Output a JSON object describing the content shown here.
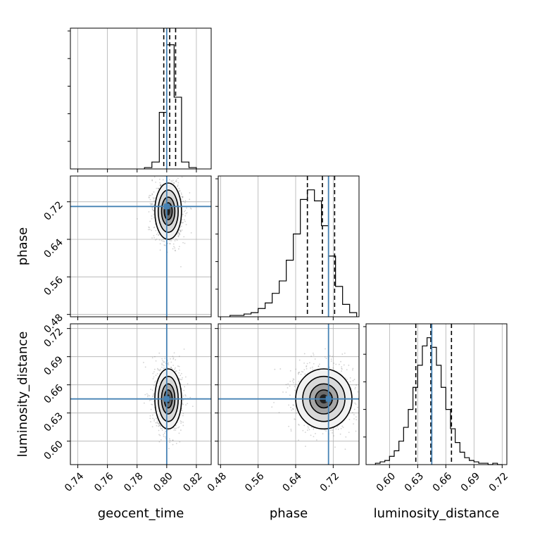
{
  "chart_data": {
    "type": "corner",
    "parameters": [
      {
        "key": "geocent_time",
        "label": "geocent_time",
        "ticks": [
          0.74,
          0.76,
          0.78,
          0.8,
          0.82
        ],
        "tick_labels": [
          "0.74",
          "0.76",
          "0.78",
          "0.80",
          "0.82"
        ],
        "range": [
          0.735,
          0.83
        ]
      },
      {
        "key": "phase",
        "label": "phase",
        "ticks": [
          0.48,
          0.56,
          0.64,
          0.72
        ],
        "tick_labels": [
          "0.48",
          "0.56",
          "0.64",
          "0.72"
        ],
        "range": [
          0.475,
          0.775
        ]
      },
      {
        "key": "luminosity_distance",
        "label": "luminosity_distance",
        "ticks": [
          0.6,
          0.63,
          0.66,
          0.69,
          0.72
        ],
        "tick_labels": [
          "0.60",
          "0.63",
          "0.66",
          "0.69",
          "0.72"
        ],
        "range": [
          0.575,
          0.725
        ]
      }
    ],
    "truths": {
      "geocent_time": 0.8,
      "phase": 0.71,
      "luminosity_distance": 0.645
    },
    "quantiles": {
      "geocent_time": [
        0.798,
        0.802,
        0.806
      ],
      "phase": [
        0.665,
        0.697,
        0.723
      ],
      "luminosity_distance": [
        0.628,
        0.644,
        0.666
      ]
    },
    "histograms": {
      "geocent_time": {
        "edges": [
          0.785,
          0.79,
          0.795,
          0.8,
          0.805,
          0.81,
          0.815,
          0.82
        ],
        "counts": [
          0.01,
          0.05,
          0.41,
          0.9,
          0.52,
          0.05,
          0.01
        ]
      },
      "phase": {
        "edges": [
          0.5,
          0.515,
          0.53,
          0.545,
          0.56,
          0.575,
          0.59,
          0.605,
          0.62,
          0.635,
          0.65,
          0.665,
          0.68,
          0.695,
          0.71,
          0.725,
          0.74,
          0.755,
          0.77
        ],
        "counts": [
          0.01,
          0.01,
          0.02,
          0.03,
          0.06,
          0.1,
          0.17,
          0.26,
          0.41,
          0.6,
          0.85,
          0.92,
          0.84,
          0.66,
          0.44,
          0.22,
          0.09,
          0.03
        ]
      },
      "luminosity_distance": {
        "edges": [
          0.585,
          0.59,
          0.595,
          0.6,
          0.605,
          0.61,
          0.615,
          0.62,
          0.625,
          0.63,
          0.635,
          0.64,
          0.645,
          0.65,
          0.655,
          0.66,
          0.665,
          0.67,
          0.675,
          0.68,
          0.685,
          0.69,
          0.695,
          0.7,
          0.705,
          0.71,
          0.715,
          0.72
        ],
        "counts": [
          0.01,
          0.02,
          0.03,
          0.06,
          0.1,
          0.17,
          0.27,
          0.4,
          0.56,
          0.72,
          0.86,
          0.92,
          0.85,
          0.72,
          0.56,
          0.4,
          0.26,
          0.16,
          0.09,
          0.05,
          0.03,
          0.02,
          0.01,
          0.01,
          0.0,
          0.01,
          0.0
        ]
      }
    },
    "joint": [
      {
        "x": "geocent_time",
        "y": "phase",
        "center": [
          0.801,
          0.7
        ],
        "sigma": [
          0.0045,
          0.03
        ]
      },
      {
        "x": "geocent_time",
        "y": "luminosity_distance",
        "center": [
          0.801,
          0.645
        ],
        "sigma": [
          0.0045,
          0.016
        ]
      },
      {
        "x": "phase",
        "y": "luminosity_distance",
        "center": [
          0.7,
          0.645
        ],
        "sigma": [
          0.03,
          0.016
        ]
      }
    ],
    "grid": true,
    "colors": {
      "truth": "#4682b4",
      "contour": "#000000",
      "points": "#7f7f7f"
    }
  }
}
